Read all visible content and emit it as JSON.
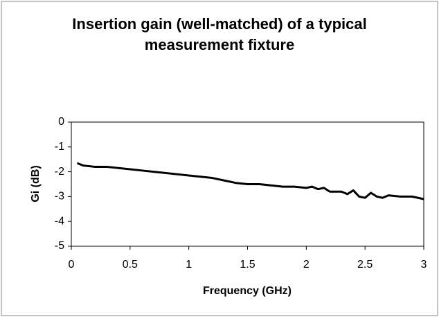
{
  "chart_data": {
    "type": "line",
    "title": "Insertion gain (well-matched) of a typical measurement fixture",
    "x_label": "Frequency (GHz)",
    "y_label": "Gi (dB)",
    "x": [
      0.05,
      0.1,
      0.2,
      0.3,
      0.4,
      0.5,
      0.6,
      0.7,
      0.8,
      0.9,
      1.0,
      1.1,
      1.2,
      1.3,
      1.4,
      1.5,
      1.6,
      1.7,
      1.8,
      1.9,
      2.0,
      2.05,
      2.1,
      2.15,
      2.2,
      2.3,
      2.35,
      2.4,
      2.45,
      2.5,
      2.55,
      2.6,
      2.65,
      2.7,
      2.8,
      2.9,
      3.0
    ],
    "series": [
      {
        "name": "Gi",
        "color": "#000000",
        "values": [
          -1.65,
          -1.75,
          -1.8,
          -1.8,
          -1.85,
          -1.9,
          -1.95,
          -2.0,
          -2.05,
          -2.1,
          -2.15,
          -2.2,
          -2.25,
          -2.35,
          -2.45,
          -2.5,
          -2.5,
          -2.55,
          -2.6,
          -2.6,
          -2.65,
          -2.6,
          -2.7,
          -2.65,
          -2.8,
          -2.8,
          -2.9,
          -2.75,
          -3.0,
          -3.05,
          -2.85,
          -3.0,
          -3.05,
          -2.95,
          -3.0,
          -3.0,
          -3.1
        ]
      }
    ],
    "xlim": [
      0,
      3
    ],
    "xticks": [
      0,
      0.5,
      1,
      1.5,
      2,
      2.5,
      3
    ],
    "ylim": [
      -5,
      0
    ],
    "yticks": [
      0,
      -1,
      -2,
      -3,
      -4,
      -5
    ],
    "grid": false
  }
}
